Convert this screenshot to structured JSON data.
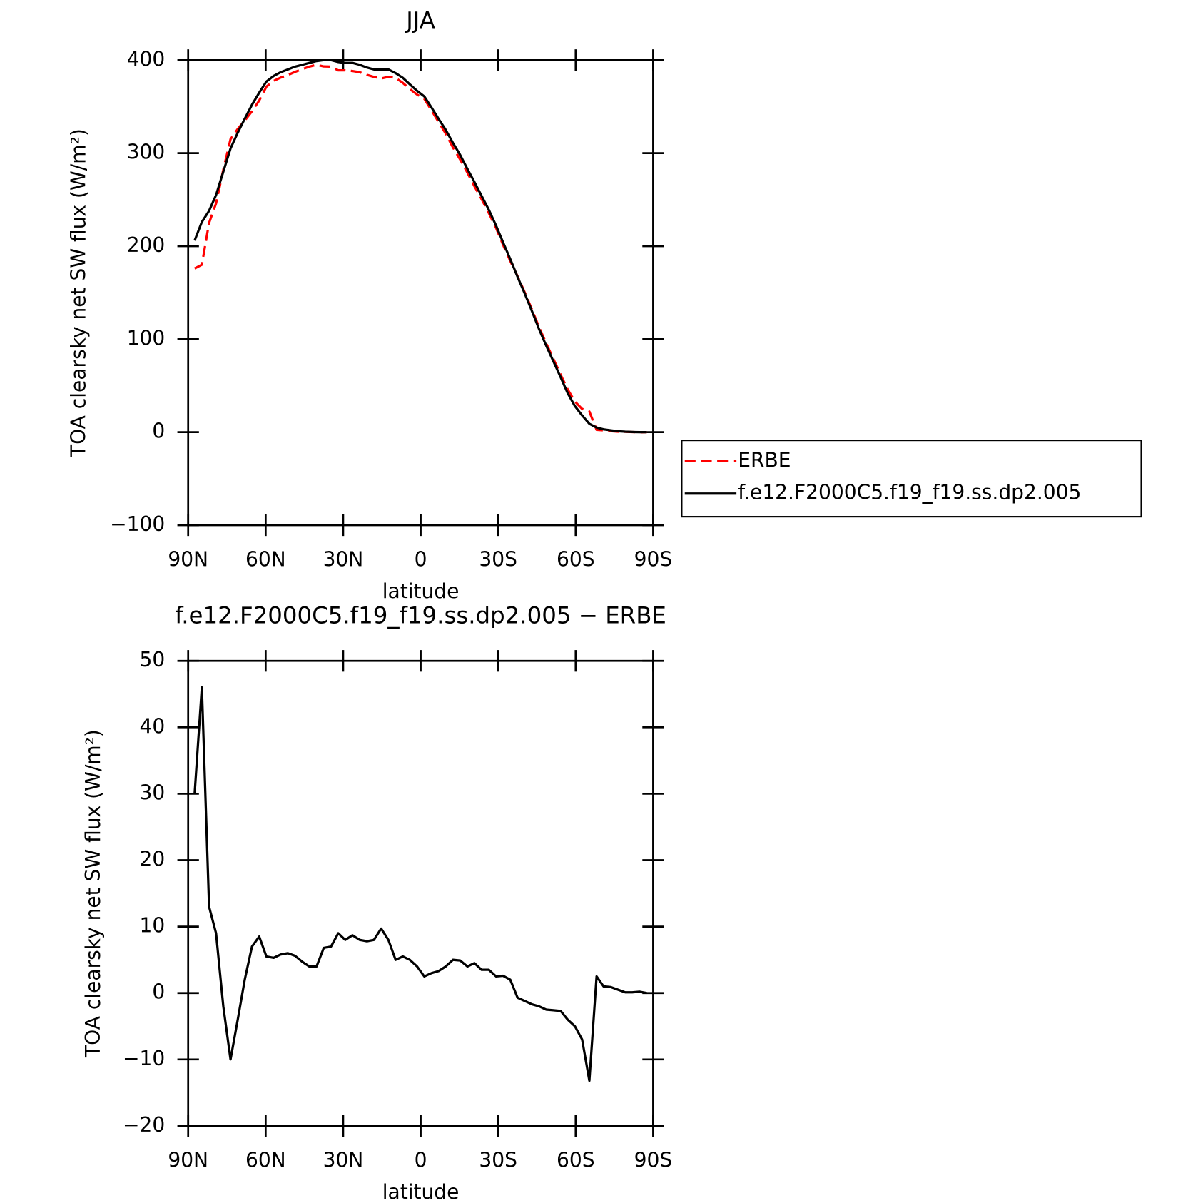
{
  "chart_data": [
    {
      "type": "line",
      "title": "JJA",
      "xlabel": "latitude",
      "ylabel": "TOA clearsky net SW flux (W/m²)",
      "x": [
        87.5,
        84.7,
        81.9,
        79.2,
        76.4,
        73.6,
        70.8,
        68.1,
        65.3,
        62.5,
        59.7,
        56.9,
        54.2,
        51.4,
        48.6,
        45.8,
        43.1,
        40.3,
        37.5,
        34.7,
        31.9,
        29.2,
        26.4,
        23.6,
        20.8,
        18.1,
        15.3,
        12.5,
        9.7,
        6.9,
        4.2,
        1.4,
        -1.4,
        -4.2,
        -6.9,
        -9.7,
        -12.5,
        -15.3,
        -18.1,
        -20.8,
        -23.6,
        -26.4,
        -29.2,
        -31.9,
        -34.7,
        -37.5,
        -40.3,
        -43.1,
        -45.8,
        -48.6,
        -51.4,
        -54.2,
        -56.9,
        -59.7,
        -62.5,
        -65.3,
        -68.1,
        -70.8,
        -73.6,
        -76.4,
        -79.2,
        -81.9,
        -84.7,
        -87.5
      ],
      "series": [
        {
          "name": "ERBE",
          "color": "#ff0000",
          "dashed": true,
          "values": [
            176,
            180,
            225,
            246,
            282,
            315,
            326,
            335,
            345,
            356.5,
            371.5,
            377.7,
            381.2,
            384,
            387.4,
            390.3,
            393,
            395,
            393.2,
            393,
            389,
            389,
            388.3,
            387,
            384.2,
            382,
            380.3,
            382,
            381,
            375.5,
            369,
            363,
            358.5,
            346,
            333.7,
            321,
            306,
            293.1,
            279,
            264.5,
            250.5,
            235.5,
            219.5,
            201.4,
            184,
            167.7,
            150.2,
            131.7,
            113,
            95.5,
            78.6,
            61.7,
            46,
            33,
            25,
            22.2,
            2.5,
            2,
            1.1,
            0.5,
            0.4,
            0.1,
            -0.2,
            0
          ]
        },
        {
          "name": "f.e12.F2000C5.f19_f19.ss.dp2.005",
          "color": "#000000",
          "dashed": false,
          "values": [
            206,
            226,
            238,
            255,
            280,
            305,
            322,
            337,
            352,
            365,
            377,
            383,
            387,
            390,
            393,
            395,
            397,
            399,
            400,
            400,
            398,
            397,
            397,
            395,
            392,
            390,
            390,
            390,
            386,
            381,
            374,
            367,
            361,
            349,
            337,
            325,
            311,
            298,
            283,
            269,
            254,
            239,
            222,
            204,
            186,
            167,
            149,
            130,
            111,
            93,
            76,
            59,
            42,
            28,
            18,
            9,
            5,
            3,
            2,
            1,
            0.5,
            0.2,
            0,
            0
          ]
        }
      ],
      "xlim": [
        90,
        -90
      ],
      "xticks": [
        {
          "value": 90,
          "label": "90N"
        },
        {
          "value": 60,
          "label": "60N"
        },
        {
          "value": 30,
          "label": "30N"
        },
        0,
        {
          "value": -30,
          "label": "30S"
        },
        {
          "value": -60,
          "label": "60S"
        },
        {
          "value": -90,
          "label": "90S"
        }
      ],
      "ylim": [
        -100,
        400
      ],
      "yticks": [
        {
          "value": -100,
          "label": "−100"
        },
        0,
        100,
        200,
        300,
        400
      ],
      "legend": "right"
    },
    {
      "type": "line",
      "title": "f.e12.F2000C5.f19_f19.ss.dp2.005 − ERBE",
      "xlabel": "latitude",
      "ylabel": "TOA clearsky net SW flux (W/m²)",
      "x": [
        87.5,
        84.7,
        81.9,
        79.2,
        76.4,
        73.6,
        70.8,
        68.1,
        65.3,
        62.5,
        59.7,
        56.9,
        54.2,
        51.4,
        48.6,
        45.8,
        43.1,
        40.3,
        37.5,
        34.7,
        31.9,
        29.2,
        26.4,
        23.6,
        20.8,
        18.1,
        15.3,
        12.5,
        9.7,
        6.9,
        4.2,
        1.4,
        -1.4,
        -4.2,
        -6.9,
        -9.7,
        -12.5,
        -15.3,
        -18.1,
        -20.8,
        -23.6,
        -26.4,
        -29.2,
        -31.9,
        -34.7,
        -37.5,
        -40.3,
        -43.1,
        -45.8,
        -48.6,
        -51.4,
        -54.2,
        -56.9,
        -59.7,
        -62.5,
        -65.3,
        -68.1,
        -70.8,
        -73.6,
        -76.4,
        -79.2,
        -81.9,
        -84.7,
        -87.5
      ],
      "values": [
        30,
        46,
        13,
        9,
        -2,
        -10,
        -4,
        2,
        7,
        8.5,
        5.5,
        5.3,
        5.8,
        6,
        5.6,
        4.7,
        4,
        4,
        6.8,
        7,
        9,
        8,
        8.7,
        8,
        7.8,
        8,
        9.7,
        8,
        5,
        5.5,
        5,
        4,
        2.5,
        3,
        3.3,
        4,
        5,
        4.9,
        4,
        4.5,
        3.5,
        3.5,
        2.5,
        2.6,
        2,
        -0.7,
        -1.2,
        -1.7,
        -2,
        -2.5,
        -2.6,
        -2.7,
        -4,
        -5,
        -7,
        -13.2,
        2.5,
        1,
        0.9,
        0.5,
        0.1,
        0.1,
        0.2,
        0
      ],
      "color": "#000000",
      "xlim": [
        90,
        -90
      ],
      "xticks": [
        {
          "value": 90,
          "label": "90N"
        },
        {
          "value": 60,
          "label": "60N"
        },
        {
          "value": 30,
          "label": "30N"
        },
        0,
        {
          "value": -30,
          "label": "30S"
        },
        {
          "value": -60,
          "label": "60S"
        },
        {
          "value": -90,
          "label": "90S"
        }
      ],
      "ylim": [
        -20,
        50
      ],
      "yticks": [
        {
          "value": -20,
          "label": "−20"
        },
        {
          "value": -10,
          "label": "−10"
        },
        0,
        10,
        20,
        30,
        40,
        50
      ]
    }
  ]
}
